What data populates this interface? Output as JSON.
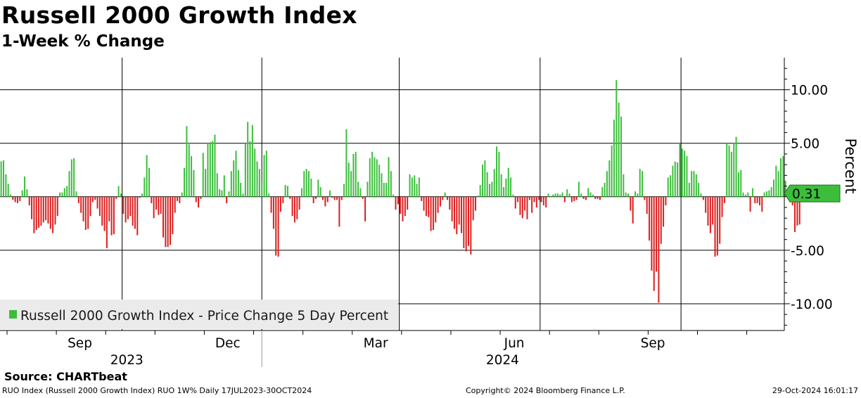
{
  "title": "Russell 2000 Growth Index",
  "subtitle": "1-Week % Change",
  "source": "Source:  CHARTbeat",
  "footer": {
    "left": "RUO Index (Russell 2000 Growth Index) RUO 1W% Daily 17JUL2023-30OCT2024",
    "middle": "Copyright© 2024 Bloomberg Finance L.P.",
    "right": "29-Oct-2024 16:01:17"
  },
  "colors": {
    "positive": "#3cbe3c",
    "negative": "#dc1e1e",
    "last_marker": "#3cbe3c"
  },
  "chart_data": {
    "type": "bar",
    "title": "Russell 2000 Growth Index",
    "subtitle": "1-Week % Change",
    "ylabel": "Percent",
    "ylim": [
      -12.5,
      13
    ],
    "yticks": [
      10,
      5,
      0,
      -5,
      -10
    ],
    "ytick_labels": [
      "10.00",
      "5.00",
      "",
      "-5.00",
      "-10.00"
    ],
    "xlim": [
      0,
      334
    ],
    "month_labels": [
      {
        "label": "Sep",
        "x": 34
      },
      {
        "label": "Dec",
        "x": 97
      },
      {
        "label": "Mar",
        "x": 160
      },
      {
        "label": "Jun",
        "x": 219
      },
      {
        "label": "Sep",
        "x": 278
      }
    ],
    "year_labels": [
      {
        "label": "2023",
        "x": 54
      },
      {
        "label": "2024",
        "x": 214
      }
    ],
    "year_boundary_x": 111.5,
    "vertical_gridlines_x": [
      52,
      111.5,
      170,
      230,
      290
    ],
    "legend": "Russell 2000 Growth Index - Price Change 5 Day Percent",
    "legend_position": "bottom-left",
    "last_value": 0.31,
    "last_value_label": "0.31",
    "series": [
      {
        "name": "Russell 2000 Growth Index - Price Change 5 Day Percent",
        "values": [
          3.3,
          3.4,
          2.1,
          1.2,
          0.2,
          -0.3,
          -0.5,
          -0.6,
          -0.4,
          0.6,
          1.9,
          0.7,
          -0.8,
          -2.1,
          -3.4,
          -3.1,
          -2.9,
          -2.7,
          -2.4,
          -2.2,
          -2.5,
          -3.0,
          -3.4,
          -2.6,
          -1.8,
          0.4,
          0.4,
          0.8,
          1.0,
          2.4,
          3.5,
          3.6,
          0.5,
          -0.6,
          -1.5,
          -2.3,
          -3.1,
          -3.0,
          -1.8,
          -0.5,
          -0.3,
          -1.1,
          -1.8,
          -2.7,
          -3.2,
          -4.8,
          -2.3,
          -3.6,
          -3.5,
          -0.2,
          1.0,
          0.3,
          -1.6,
          -2.4,
          -2.1,
          -1.8,
          -2.7,
          -3.0,
          -3.6,
          -0.1,
          0.3,
          1.8,
          3.9,
          2.7,
          -0.6,
          -2.0,
          -1.2,
          -1.7,
          -1.6,
          -3.8,
          -4.7,
          -4.7,
          -4.5,
          -3.5,
          -1.5,
          -0.4,
          -0.6,
          0.4,
          2.7,
          6.6,
          4.9,
          3.8,
          2.5,
          -0.5,
          -1.0,
          -0.2,
          4.1,
          2.6,
          5.0,
          5.1,
          5.2,
          5.8,
          2.2,
          0.7,
          0.6,
          2.0,
          -0.6,
          0.5,
          2.4,
          3.4,
          4.3,
          2.5,
          1.3,
          0.3,
          5.0,
          7.0,
          5.2,
          6.7,
          4.5,
          3.3,
          2.6,
          1.4,
          3.9,
          4.3,
          0.3,
          -1.5,
          -3.0,
          -5.5,
          -5.6,
          -1.4,
          -0.6,
          1.1,
          1.0,
          -0.2,
          -1.8,
          -2.4,
          -2.1,
          -1.2,
          0.8,
          2.4,
          2.6,
          2.4,
          1.7,
          -0.6,
          -0.2,
          1.6,
          0.9,
          -0.3,
          -0.9,
          -0.5,
          0.6,
          -0.1,
          -0.3,
          -0.3,
          -2.8,
          -0.3,
          1.2,
          6.3,
          3.2,
          2.4,
          4.0,
          4.2,
          1.4,
          0.8,
          -0.2,
          -2.3,
          1.4,
          3.6,
          4.2,
          3.7,
          3.5,
          3.0,
          2.2,
          1.3,
          1.3,
          3.7,
          2.4,
          0.2,
          -1.2,
          -0.7,
          -1.6,
          -2.3,
          -1.8,
          -1.2,
          2.1,
          1.8,
          2.0,
          1.2,
          1.8,
          -0.4,
          -1.3,
          -1.8,
          -1.9,
          -3.2,
          -3.1,
          -2.4,
          -1.5,
          -0.9,
          -0.3,
          0.4,
          -0.3,
          -1.2,
          -2.3,
          -3.0,
          -3.5,
          -2.6,
          -3.4,
          -4.8,
          -5.1,
          -4.6,
          -5.4,
          -2.2,
          -1.3,
          0.1,
          1.1,
          3.0,
          3.4,
          2.3,
          1.2,
          1.4,
          2.6,
          4.7,
          4.2,
          2.1,
          0.9,
          1.7,
          2.7,
          1.8,
          0.2,
          -1.1,
          -0.5,
          -1.7,
          -2.0,
          -1.3,
          -2.1,
          -0.3,
          -1.5,
          -0.5,
          -1.0,
          -0.3,
          -0.5,
          -0.8,
          -1.0,
          0.3,
          0.0,
          0.2,
          0.3,
          0.3,
          0.2,
          0.4,
          -0.5,
          0.7,
          0.3,
          -0.5,
          -0.4,
          -0.3,
          1.4,
          0.3,
          -0.2,
          -0.3,
          0.8,
          0.4,
          0.2,
          -0.2,
          -0.2,
          -0.3,
          0.9,
          1.3,
          2.4,
          3.4,
          4.8,
          7.2,
          10.9,
          8.8,
          7.5,
          2.1,
          0.4,
          0.3,
          -1.3,
          -2.5,
          0.5,
          0.3,
          2.6,
          2.4,
          -0.3,
          -1.6,
          -4.1,
          -6.9,
          -8.8,
          -7.0,
          -9.9,
          -4.4,
          -2.8,
          -0.8,
          1.8,
          2.0,
          2.9,
          3.3,
          3.2,
          5.0,
          4.5,
          4.3,
          3.8,
          1.3,
          2.4,
          2.4,
          2.1,
          1.3,
          0.3,
          -0.3,
          -1.5,
          -2.7,
          -3.4,
          -2.6,
          -5.6,
          -5.5,
          -4.4,
          -1.9,
          -0.6,
          5.0,
          4.8,
          4.2,
          5.0,
          5.6,
          2.3,
          2.5,
          0.4,
          0.2,
          0.4,
          -1.4,
          0.8,
          -0.6,
          -0.6,
          -0.8,
          -1.4,
          0.4,
          0.5,
          0.6,
          0.9,
          1.6,
          2.9,
          2.4,
          3.6,
          3.8,
          1.5,
          0.3,
          -0.5,
          -0.8,
          -3.3,
          -2.7,
          -2.6,
          0.1,
          0.31
        ]
      }
    ]
  }
}
